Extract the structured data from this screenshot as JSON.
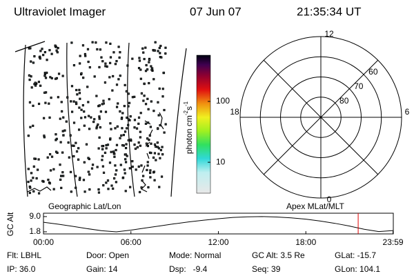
{
  "header": {
    "instrument": "Ultraviolet Imager",
    "date": "07 Jun 07",
    "time": "21:35:34 UT"
  },
  "image_panel": {
    "label": "Geographic Lat/Lon"
  },
  "colorbar": {
    "label": "photon cm",
    "exp1": "-2",
    "unit2": "s",
    "exp2": "-1",
    "log_scale": true,
    "lim": [
      3.1,
      575
    ],
    "ticks": [
      10,
      100
    ]
  },
  "polar_panel": {
    "label": "Apex MLat/MLT",
    "rlim": [
      90,
      50
    ],
    "rings": [
      80,
      70,
      60
    ],
    "mlt_labels": [
      12,
      18,
      0,
      6
    ]
  },
  "chart_data": {
    "type": "line",
    "ylabel": "GC Alt",
    "color": "#000000",
    "marker_color": "#e00000",
    "x": [
      0,
      1,
      2,
      3,
      4,
      5,
      6,
      7,
      8,
      9,
      10,
      11,
      12,
      13,
      14,
      15,
      16,
      17,
      18,
      19,
      20,
      21,
      22,
      23,
      24
    ],
    "values": [
      6.3,
      5.4,
      4.4,
      3.3,
      2.3,
      1.8,
      2.6,
      3.6,
      4.6,
      5.6,
      6.5,
      7.3,
      8.0,
      8.6,
      8.9,
      9.0,
      8.8,
      8.4,
      7.8,
      6.9,
      5.8,
      4.5,
      3.0,
      1.9,
      2.4
    ],
    "xlim": [
      0,
      24
    ],
    "ylim": [
      0.8,
      10.6
    ],
    "xticks": [
      {
        "value": 0,
        "label": "00:00"
      },
      {
        "value": 6,
        "label": "06:00"
      },
      {
        "value": 12,
        "label": "12:00"
      },
      {
        "value": 18,
        "label": "18:00"
      },
      {
        "value": 23.98,
        "label": "23:59"
      }
    ],
    "yticks": [
      {
        "value": 9,
        "label": "9.0"
      },
      {
        "value": 1.8,
        "label": "1.8"
      }
    ],
    "current_time": 21.59
  },
  "info": {
    "rows": [
      [
        "Flt: LBHL",
        "Door: Open",
        "Mode: Normal",
        "GC Alt: 3.5 Re",
        "GLat: -15.7"
      ],
      [
        "IP: 36.0",
        "Gain: 14",
        "Dsp:   -9.4",
        "Seq: 39",
        "GLon: 104.1"
      ]
    ]
  }
}
